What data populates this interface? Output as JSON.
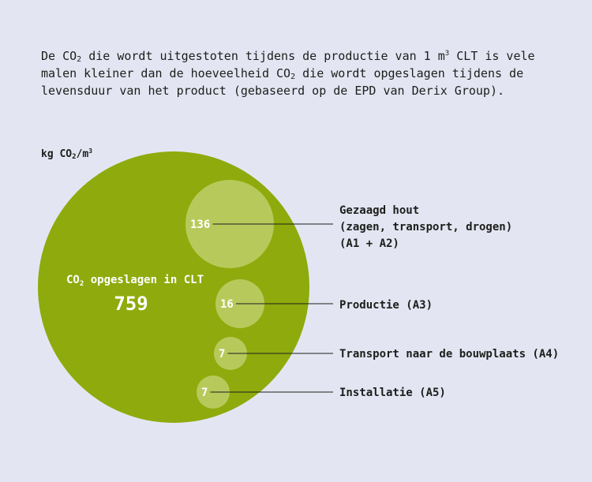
{
  "intro": {
    "part1": "De CO",
    "sub1": "2",
    "part2": " die wordt uitgestoten tijdens de productie van 1 m",
    "sup1": "3",
    "part3": " CLT is vele malen kleiner dan de hoeveelheid CO",
    "sub2": "2",
    "part4": " die wordt opgeslagen tijdens de levensduur van het product (gebaseerd op de EPD van Derix Group)."
  },
  "unit": {
    "base": "kg CO",
    "sub": "2",
    "mid": "/m",
    "sup": "3"
  },
  "colors": {
    "background": "#e3e6f2",
    "stored": "#8faa0c",
    "emissions": "#b8c95c",
    "text_light": "#ffffff",
    "text_dark": "#1d1d1b"
  },
  "chart_data": {
    "type": "bubble",
    "stored": {
      "label_pre": "CO",
      "label_sub": "2",
      "label_post": " opgeslagen in CLT",
      "value": 759
    },
    "emissions": [
      {
        "value": 136,
        "label_lines": [
          "Gezaagd hout",
          "(zagen, transport, drogen)",
          "(A1 + A2)"
        ]
      },
      {
        "value": 16,
        "label_lines": [
          "Productie (A3)"
        ]
      },
      {
        "value": 7,
        "label_lines": [
          "Transport naar de bouwplaats (A4)"
        ]
      },
      {
        "value": 7,
        "label_lines": [
          "Installatie (A5)"
        ]
      }
    ]
  }
}
